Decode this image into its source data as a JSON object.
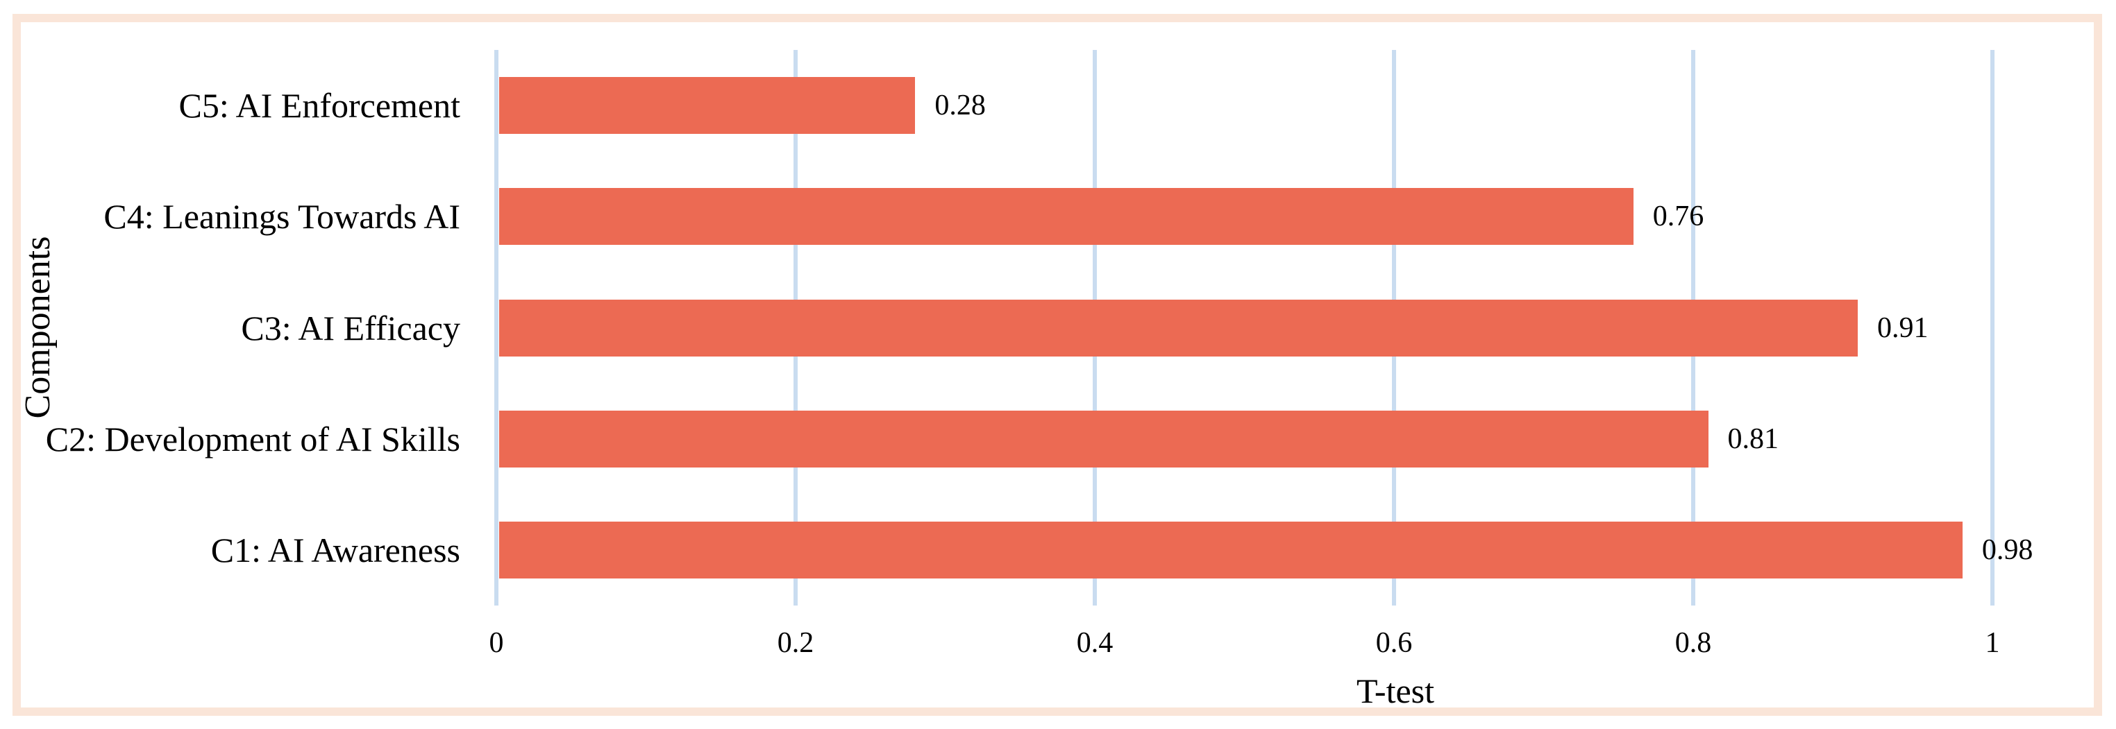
{
  "chart_data": {
    "type": "bar",
    "orientation": "horizontal",
    "title": "",
    "categories": [
      "C5: AI Enforcement",
      "C4: Leanings Towards AI",
      "C3: AI Efficacy",
      "C2: Development of AI Skills",
      "C1: AI Awareness"
    ],
    "values": [
      0.28,
      0.76,
      0.91,
      0.81,
      0.98
    ],
    "value_labels": [
      "0.28",
      "0.76",
      "0.91",
      "0.81",
      "0.98"
    ],
    "xlabel": "T-test",
    "ylabel": "Components",
    "xlim": [
      0,
      1
    ],
    "x_ticks": [
      "0",
      "0.2",
      "0.4",
      "0.6",
      "0.8",
      "1"
    ],
    "x_tick_values": [
      0,
      0.2,
      0.4,
      0.6,
      0.8,
      1
    ],
    "grid": "vertical-only",
    "legend": "none",
    "colors": {
      "bar": "#EC6A53",
      "gridline": "#C9DCF0",
      "frame_border": "#FAE5D8",
      "background": "#FFFFFF",
      "text": "#000000"
    }
  }
}
